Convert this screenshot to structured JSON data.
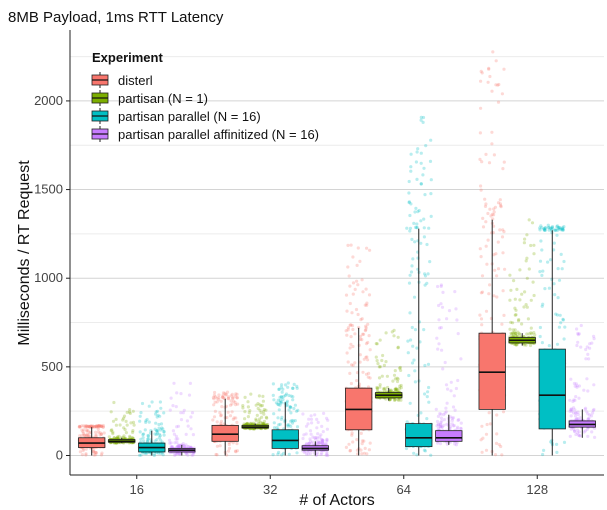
{
  "chart_data": {
    "type": "boxplot",
    "title": "8MB Payload, 1ms RTT Latency",
    "xlabel": "# of Actors",
    "ylabel": "Milliseconds / RT Request",
    "categories": [
      "16",
      "32",
      "64",
      "128"
    ],
    "ylim": [
      -110,
      2400
    ],
    "yticks": [
      0,
      500,
      1000,
      1500,
      2000
    ],
    "grid": true,
    "legend_title": "Experiment",
    "legend_position": "top-left",
    "series": [
      {
        "name": "disterl",
        "color": "#F8766D",
        "boxes": [
          {
            "min": 0,
            "q1": 45,
            "median": 70,
            "q3": 100,
            "max": 160,
            "outlier_max": 170
          },
          {
            "min": 0,
            "q1": 80,
            "median": 120,
            "q3": 170,
            "max": 320,
            "outlier_max": 360
          },
          {
            "min": 0,
            "q1": 145,
            "median": 260,
            "q3": 380,
            "max": 720,
            "outlier_max": 1230
          },
          {
            "min": 0,
            "q1": 260,
            "median": 470,
            "q3": 690,
            "max": 1330,
            "outlier_max": 2320
          }
        ]
      },
      {
        "name": "partisan (N = 1)",
        "color": "#7CAE00",
        "boxes": [
          {
            "min": 70,
            "q1": 75,
            "median": 80,
            "q3": 90,
            "max": 100,
            "outlier_max": 300
          },
          {
            "min": 150,
            "q1": 155,
            "median": 160,
            "q3": 170,
            "max": 180,
            "outlier_max": 350
          },
          {
            "min": 310,
            "q1": 325,
            "median": 340,
            "q3": 355,
            "max": 380,
            "outlier_max": 730
          },
          {
            "min": 620,
            "q1": 635,
            "median": 650,
            "q3": 665,
            "max": 690,
            "outlier_max": 1380
          }
        ]
      },
      {
        "name": "partisan parallel (N = 16)",
        "color": "#00BFC4",
        "boxes": [
          {
            "min": 0,
            "q1": 20,
            "median": 45,
            "q3": 70,
            "max": 140,
            "outlier_max": 310
          },
          {
            "min": 0,
            "q1": 40,
            "median": 85,
            "q3": 145,
            "max": 300,
            "outlier_max": 410
          },
          {
            "min": 0,
            "q1": 50,
            "median": 100,
            "q3": 180,
            "max": 1280,
            "outlier_max": 1910
          },
          {
            "min": 0,
            "q1": 150,
            "median": 340,
            "q3": 600,
            "max": 1270,
            "outlier_max": 1300
          }
        ]
      },
      {
        "name": "partisan parallel affinitized (N = 16)",
        "color": "#C77CFF",
        "boxes": [
          {
            "min": 0,
            "q1": 20,
            "median": 30,
            "q3": 40,
            "max": 60,
            "outlier_max": 420
          },
          {
            "min": 0,
            "q1": 30,
            "median": 40,
            "q3": 55,
            "max": 80,
            "outlier_max": 240
          },
          {
            "min": 60,
            "q1": 80,
            "median": 100,
            "q3": 140,
            "max": 230,
            "outlier_max": 1000
          },
          {
            "min": 100,
            "q1": 160,
            "median": 175,
            "q3": 195,
            "max": 260,
            "outlier_max": 750
          }
        ]
      }
    ]
  }
}
